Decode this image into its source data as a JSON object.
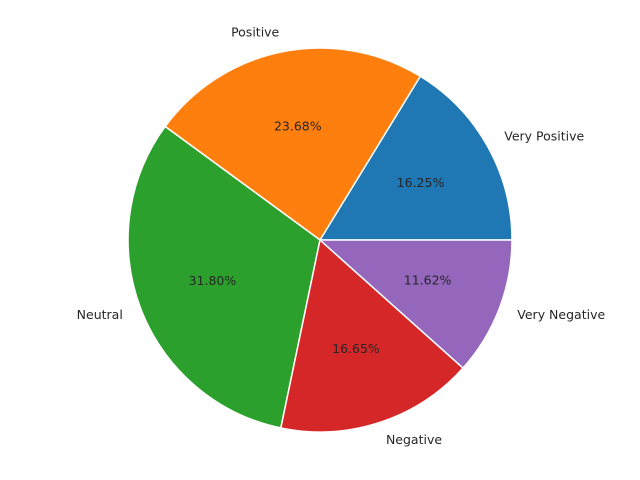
{
  "chart_data": {
    "type": "pie",
    "title": "",
    "slices": [
      {
        "label": "Very Positive",
        "value": 16.25,
        "value_label": "16.25%",
        "color": "#1f77b4"
      },
      {
        "label": "Positive",
        "value": 23.68,
        "value_label": "23.68%",
        "color": "#ff7f0e"
      },
      {
        "label": "Neutral",
        "value": 31.8,
        "value_label": "31.80%",
        "color": "#2ca02c"
      },
      {
        "label": "Negative",
        "value": 16.65,
        "value_label": "16.65%",
        "color": "#d62728"
      },
      {
        "label": "Very Negative",
        "value": 11.62,
        "value_label": "11.62%",
        "color": "#9467bd"
      }
    ],
    "start_angle_deg": 0,
    "direction": "counterclockwise",
    "legend": "none"
  }
}
